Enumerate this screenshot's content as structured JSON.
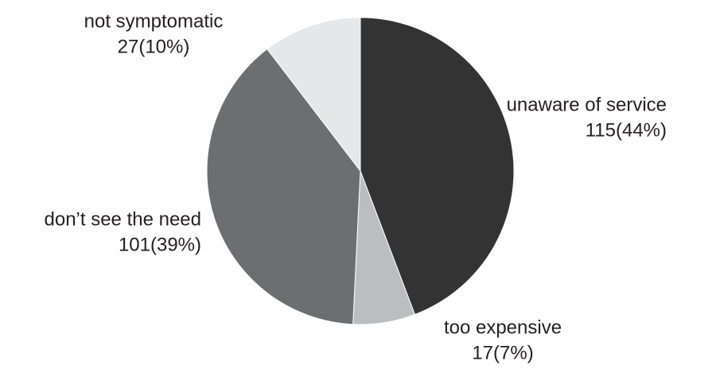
{
  "chart_data": {
    "type": "pie",
    "categories": [
      "unaware of service",
      "too expensive",
      "don’t see the need",
      "not symptomatic"
    ],
    "values": [
      115,
      17,
      101,
      27
    ],
    "value_labels": [
      "115(44%)",
      "17(7%)",
      "101(39%)",
      "27(10%)"
    ],
    "colors": [
      "#333333",
      "#bcbdc0",
      "#6d6e71",
      "#e6e7e8"
    ]
  }
}
